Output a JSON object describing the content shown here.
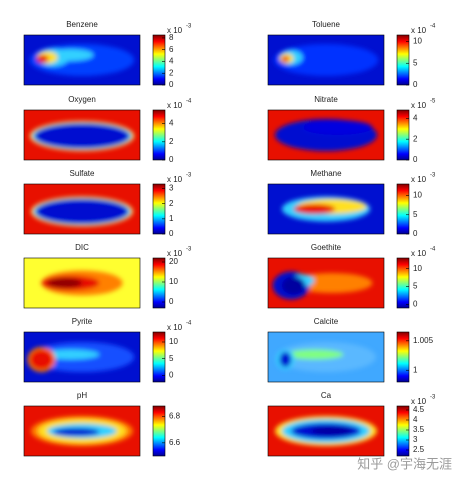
{
  "chart_data": [
    {
      "type": "heatmap",
      "title": "Benzene",
      "scale_label": "x 10",
      "scale_exponent": -3,
      "clim": [
        0,
        8.5
      ],
      "cticks": [
        0,
        2,
        4,
        6,
        8
      ]
    },
    {
      "type": "heatmap",
      "title": "Toluene",
      "scale_label": "x 10",
      "scale_exponent": -4,
      "clim": [
        0,
        11.5
      ],
      "cticks": [
        0,
        5,
        10
      ]
    },
    {
      "type": "heatmap",
      "title": "Oxygen",
      "scale_label": "x 10",
      "scale_exponent": -4,
      "clim": [
        0,
        5.5
      ],
      "cticks": [
        0,
        2,
        4
      ]
    },
    {
      "type": "heatmap",
      "title": "Nitrate",
      "scale_label": "x 10",
      "scale_exponent": -5,
      "clim": [
        0,
        4.8
      ],
      "cticks": [
        0,
        2,
        4
      ]
    },
    {
      "type": "heatmap",
      "title": "Sulfate",
      "scale_label": "x 10",
      "scale_exponent": -3,
      "clim": [
        0,
        3.3
      ],
      "cticks": [
        0,
        1,
        2,
        3
      ]
    },
    {
      "type": "heatmap",
      "title": "Methane",
      "scale_label": "x 10",
      "scale_exponent": -3,
      "clim": [
        0,
        13
      ],
      "cticks": [
        0,
        5,
        10
      ]
    },
    {
      "type": "heatmap",
      "title": "DIC",
      "scale_label": "x 10",
      "scale_exponent": -3,
      "clim": [
        -3,
        22
      ],
      "cticks": [
        0,
        10,
        20
      ]
    },
    {
      "type": "heatmap",
      "title": "Goethite",
      "scale_label": "x 10",
      "scale_exponent": -4,
      "clim": [
        -1,
        13
      ],
      "cticks": [
        0,
        5,
        10
      ]
    },
    {
      "type": "heatmap",
      "title": "Pyrite",
      "scale_label": "x 10",
      "scale_exponent": -4,
      "clim": [
        -2,
        13
      ],
      "cticks": [
        0,
        5,
        10
      ]
    },
    {
      "type": "heatmap",
      "title": "Calcite",
      "clim": [
        0.998,
        1.0065
      ],
      "cticks": [
        1,
        1.005
      ]
    },
    {
      "type": "heatmap",
      "title": "pH",
      "clim": [
        6.5,
        6.88
      ],
      "cticks": [
        6.6,
        6.8
      ]
    },
    {
      "type": "heatmap",
      "title": "Ca",
      "scale_label": "x 10",
      "scale_exponent": -3,
      "clim": [
        2.2,
        4.7
      ],
      "cticks": [
        2.5,
        3,
        3.5,
        4,
        4.5
      ]
    }
  ],
  "watermark": "知乎 @宇海无涯"
}
